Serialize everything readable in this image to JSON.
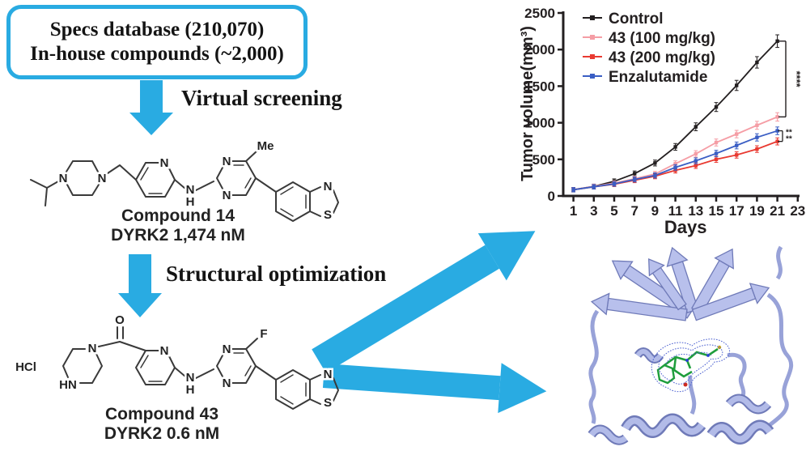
{
  "colors": {
    "accent": "#29abe2",
    "control": "#231f20",
    "dose100": "#f59da5",
    "dose200": "#e93a31",
    "enzalutamide": "#3a5ec4",
    "ribbon": "#b5bee9",
    "ligand_green": "#1f9e3c",
    "density_blue": "#4a5fd0"
  },
  "funnel_box": {
    "line1": "Specs database (210,070)",
    "line2": "In-house compounds (~2,000)"
  },
  "steps": {
    "virtual_screening": "Virtual screening",
    "structural_optimization": "Structural optimization"
  },
  "compound14": {
    "name": "Compound 14",
    "activity": "DYRK2 1,474 nM",
    "atoms": [
      "N",
      "N",
      "N",
      "N",
      "H",
      "N",
      "N",
      "Me",
      "N",
      "S"
    ]
  },
  "compound43": {
    "name": "Compound 43",
    "activity": "DYRK2 0.6 nM",
    "atoms": [
      "HCl",
      "HN",
      "N",
      "O",
      "N",
      "N",
      "H",
      "N",
      "N",
      "F",
      "N",
      "S"
    ]
  },
  "chart_data": {
    "type": "line",
    "title": "",
    "xlabel": "Days",
    "ylabel": "Tumor volume(mm³)",
    "x": [
      1,
      3,
      5,
      7,
      9,
      11,
      13,
      15,
      17,
      19,
      21
    ],
    "xticks": [
      1,
      3,
      5,
      7,
      9,
      11,
      13,
      15,
      17,
      19,
      21,
      23
    ],
    "xlim": [
      0,
      23.5
    ],
    "ylim": [
      0,
      2500
    ],
    "yticks": [
      0,
      500,
      1000,
      1500,
      2000,
      2500
    ],
    "grid": false,
    "legend_position": "top-left",
    "series": [
      {
        "name": "Control",
        "color": "#231f20",
        "values": [
          85,
          130,
          200,
          305,
          450,
          670,
          945,
          1215,
          1510,
          1825,
          2115
        ]
      },
      {
        "name": "43 (100 mg/kg)",
        "color": "#f59da5",
        "values": [
          85,
          130,
          175,
          235,
          300,
          440,
          575,
          730,
          845,
          965,
          1080
        ]
      },
      {
        "name": "43 (200 mg/kg)",
        "color": "#e93a31",
        "values": [
          85,
          125,
          160,
          215,
          270,
          350,
          415,
          500,
          560,
          640,
          745
        ]
      },
      {
        "name": "Enzalutamide",
        "color": "#3a5ec4",
        "values": [
          85,
          125,
          165,
          225,
          280,
          390,
          480,
          580,
          690,
          800,
          890
        ]
      }
    ],
    "significance": {
      "top": {
        "label": "****",
        "y_from": 2115,
        "y_to": 1080
      },
      "bottom": {
        "labels": [
          "**",
          "**"
        ],
        "y_from": 890,
        "y_to": 745
      }
    }
  }
}
